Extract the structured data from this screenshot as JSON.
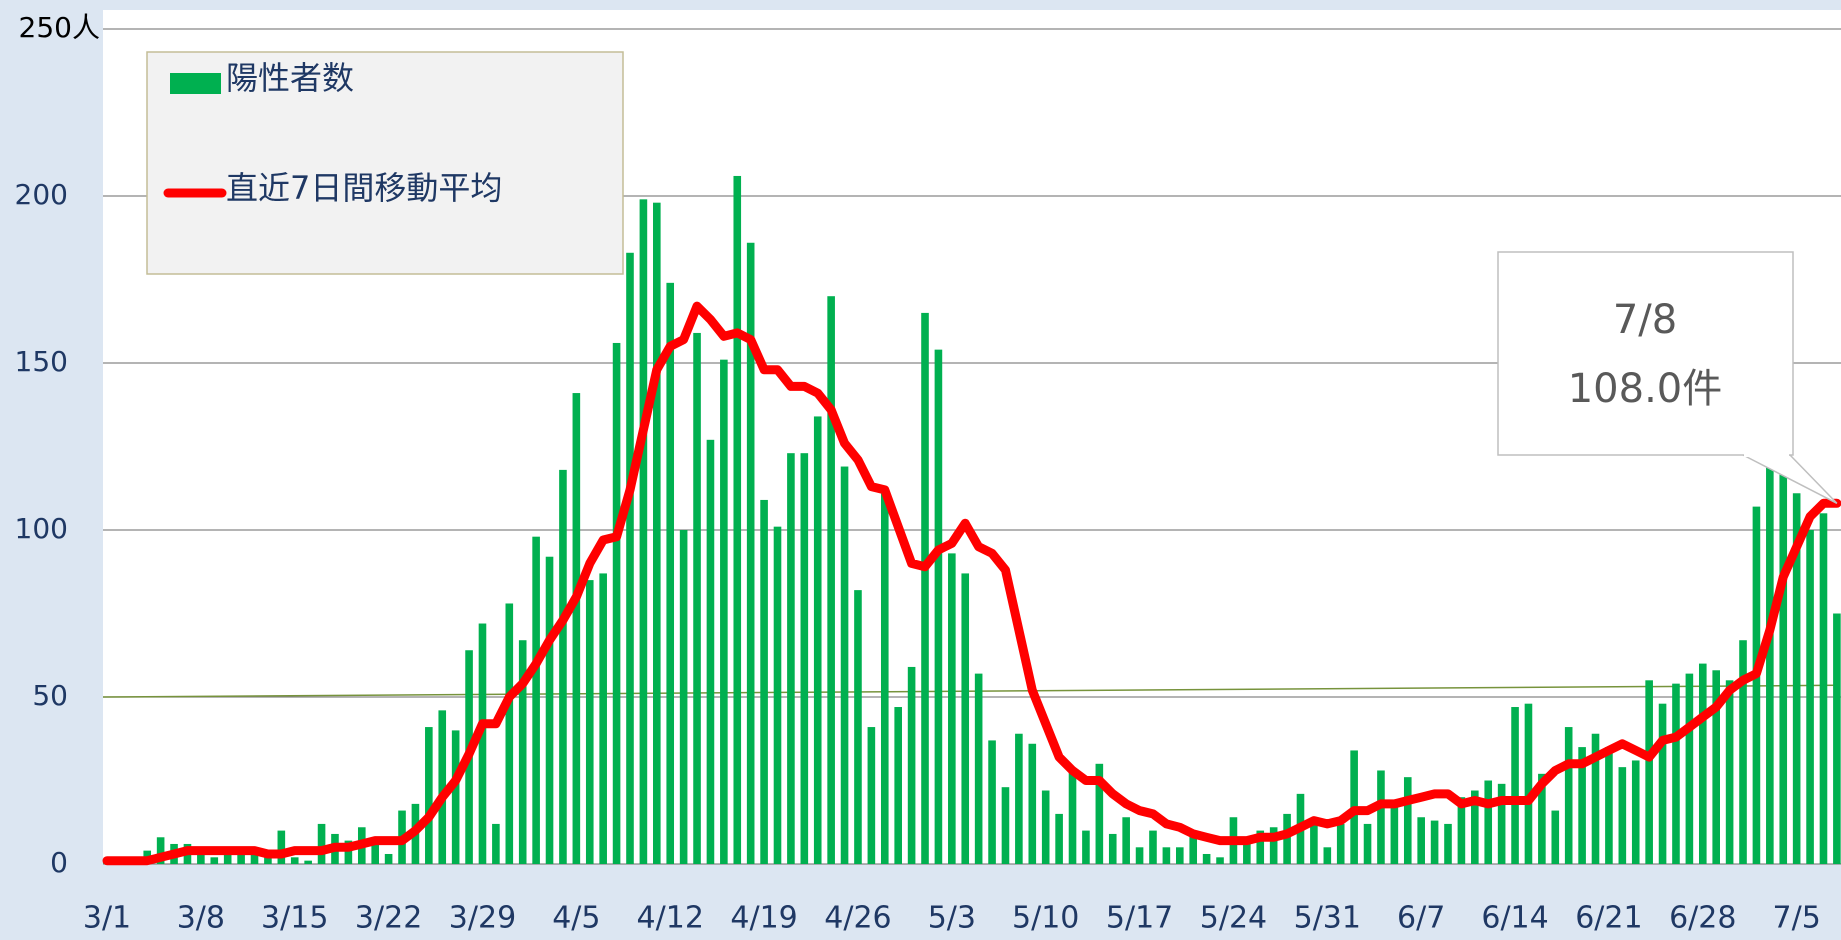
{
  "chart_data": {
    "type": "bar_line",
    "categories": [
      "3/1",
      null,
      null,
      null,
      null,
      null,
      null,
      "3/8",
      null,
      null,
      null,
      null,
      null,
      null,
      "3/15",
      null,
      null,
      null,
      null,
      null,
      null,
      "3/22",
      null,
      null,
      null,
      null,
      null,
      null,
      "3/29",
      null,
      null,
      null,
      null,
      null,
      null,
      "4/5",
      null,
      null,
      null,
      null,
      null,
      null,
      "4/12",
      null,
      null,
      null,
      null,
      null,
      null,
      "4/19",
      null,
      null,
      null,
      null,
      null,
      null,
      "4/26",
      null,
      null,
      null,
      null,
      null,
      null,
      "5/3",
      null,
      null,
      null,
      null,
      null,
      null,
      "5/10",
      null,
      null,
      null,
      null,
      null,
      null,
      "5/17",
      null,
      null,
      null,
      null,
      null,
      null,
      "5/24",
      null,
      null,
      null,
      null,
      null,
      null,
      "5/31",
      null,
      null,
      null,
      null,
      null,
      null,
      "6/7",
      null,
      null,
      null,
      null,
      null,
      null,
      "6/14",
      null,
      null,
      null,
      null,
      null,
      null,
      "6/21",
      null,
      null,
      null,
      null,
      null,
      null,
      "6/28",
      null,
      null,
      null,
      null,
      null,
      null,
      "7/5",
      null,
      null,
      null
    ],
    "series": [
      {
        "name": "陽性者数",
        "color": "#00b050",
        "kind": "bar",
        "values": [
          1,
          1,
          2,
          4,
          8,
          6,
          6,
          3,
          2,
          4,
          4,
          3,
          2,
          10,
          2,
          1,
          12,
          9,
          7,
          11,
          8,
          3,
          16,
          18,
          41,
          46,
          40,
          64,
          72,
          12,
          78,
          67,
          98,
          92,
          118,
          141,
          85,
          87,
          156,
          183,
          199,
          198,
          174,
          100,
          159,
          127,
          151,
          206,
          186,
          109,
          101,
          123,
          123,
          134,
          170,
          119,
          82,
          41,
          111,
          47,
          59,
          165,
          154,
          93,
          87,
          57,
          37,
          23,
          39,
          36,
          22,
          15,
          28,
          10,
          30,
          9,
          14,
          5,
          10,
          5,
          5,
          10,
          3,
          2,
          14,
          7,
          10,
          11,
          15,
          21,
          12,
          5,
          12,
          34,
          12,
          28,
          18,
          26,
          14,
          13,
          12,
          20,
          22,
          25,
          24,
          47,
          48,
          27,
          16,
          41,
          35,
          39,
          35,
          29,
          31,
          55,
          48,
          54,
          57,
          60,
          58,
          55,
          67,
          107,
          122,
          124,
          111,
          100,
          105,
          75
        ]
      },
      {
        "name": "直近7日間移動平均",
        "color": "#ff0000",
        "kind": "line",
        "values": [
          1,
          1,
          1,
          1,
          2,
          3,
          4,
          4,
          4,
          4,
          4,
          4,
          3,
          3,
          4,
          4,
          4,
          5,
          5,
          6,
          7,
          7,
          7,
          10,
          14,
          20,
          25,
          33,
          42,
          42,
          50,
          54,
          60,
          67,
          73,
          80,
          90,
          97,
          98,
          112,
          130,
          148,
          155,
          157,
          167,
          163,
          158,
          159,
          157,
          148,
          148,
          143,
          143,
          141,
          136,
          126,
          121,
          113,
          112,
          101,
          90,
          89,
          94,
          96,
          102,
          95,
          93,
          88,
          70,
          52,
          42,
          32,
          28,
          25,
          25,
          21,
          18,
          16,
          15,
          12,
          11,
          9,
          8,
          7,
          7,
          7,
          8,
          8,
          9,
          11,
          13,
          12,
          13,
          16,
          16,
          18,
          18,
          19,
          20,
          21,
          21,
          18,
          19,
          18,
          19,
          19,
          19,
          24,
          28,
          30,
          30,
          32,
          34,
          36,
          34,
          32,
          37,
          38,
          41,
          44,
          47,
          52,
          55,
          57,
          70,
          86,
          95,
          104,
          108,
          108
        ]
      }
    ],
    "trendline": {
      "color": "#77933c",
      "values": [
        50,
        53.5
      ]
    },
    "annotation": {
      "date": "7/8",
      "text": "108.0件",
      "index": 129
    },
    "ylim": [
      0,
      250
    ],
    "yticks": [
      0,
      50,
      100,
      150,
      {
        "value": 250,
        "label": "250人"
      },
      200
    ],
    "grid": true
  }
}
